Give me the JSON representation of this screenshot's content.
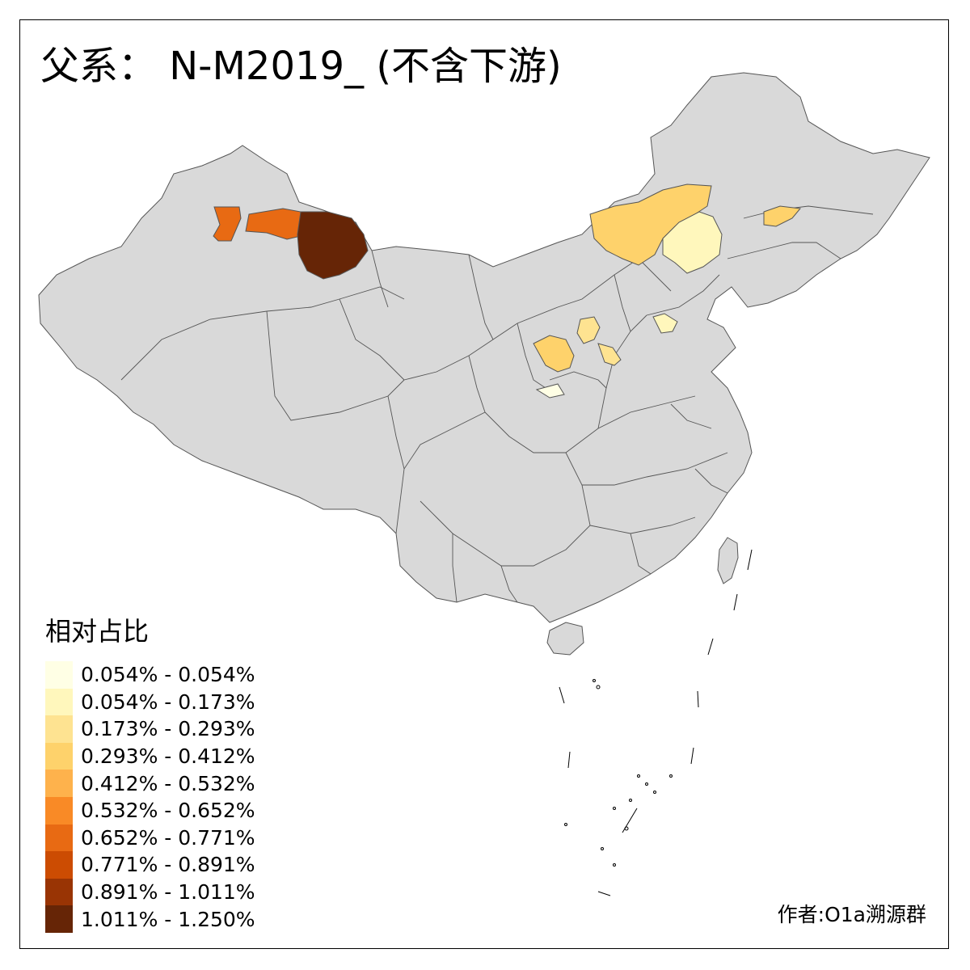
{
  "title": "父系： N-M2019_ (不含下游)",
  "legend": {
    "title": "相对占比",
    "bins": [
      {
        "label": "0.054% - 0.054%",
        "color": "#ffffe5"
      },
      {
        "label": "0.054% - 0.173%",
        "color": "#fff7bc"
      },
      {
        "label": "0.173% - 0.293%",
        "color": "#fee391"
      },
      {
        "label": "0.293% - 0.412%",
        "color": "#fed26b"
      },
      {
        "label": "0.412% - 0.532%",
        "color": "#feb24c"
      },
      {
        "label": "0.532% - 0.652%",
        "color": "#f98a26"
      },
      {
        "label": "0.652% - 0.771%",
        "color": "#e86a13"
      },
      {
        "label": "0.771% - 0.891%",
        "color": "#cc4c02"
      },
      {
        "label": "0.891% - 1.011%",
        "color": "#993404"
      },
      {
        "label": "1.011% - 1.250%",
        "color": "#662506"
      }
    ]
  },
  "credit": "作者:O1a溯源群",
  "colors": {
    "base_land": "#d9d9d9",
    "border": "#555555",
    "background": "#ffffff"
  }
}
